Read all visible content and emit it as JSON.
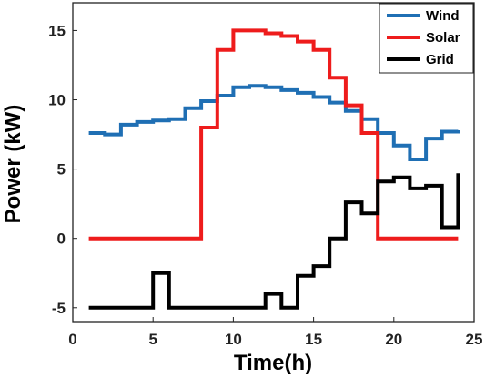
{
  "chart_data": {
    "type": "line",
    "step": true,
    "xlabel": "Time(h)",
    "ylabel": "Power (kW)",
    "xlim": [
      0,
      25
    ],
    "ylim": [
      -6,
      17
    ],
    "xticks": [
      0,
      5,
      10,
      15,
      20,
      25
    ],
    "yticks": [
      -5,
      0,
      5,
      10,
      15
    ],
    "grid": false,
    "legend": "top-right",
    "x": [
      1,
      2,
      3,
      4,
      5,
      6,
      7,
      8,
      9,
      10,
      11,
      12,
      13,
      14,
      15,
      16,
      17,
      18,
      19,
      20,
      21,
      22,
      23,
      24
    ],
    "series": [
      {
        "name": "Wind",
        "color": "#1f6fb4",
        "values": [
          7.6,
          7.5,
          8.2,
          8.4,
          8.5,
          8.6,
          9.4,
          9.9,
          10.3,
          10.9,
          11.0,
          10.9,
          10.7,
          10.5,
          10.2,
          9.8,
          9.2,
          8.6,
          7.6,
          6.7,
          5.7,
          7.2,
          7.7,
          7.8
        ]
      },
      {
        "name": "Solar",
        "color": "#ee1c1c",
        "values": [
          0,
          0,
          0,
          0,
          0,
          0,
          0,
          8.0,
          13.6,
          15.0,
          15.0,
          14.8,
          14.6,
          14.2,
          13.6,
          11.6,
          9.6,
          7.6,
          0,
          0,
          0,
          0,
          0,
          0
        ]
      },
      {
        "name": "Grid",
        "color": "#000000",
        "values": [
          -5.0,
          -5.0,
          -5.0,
          -5.0,
          -2.5,
          -5.0,
          -5.0,
          -5.0,
          -5.0,
          -5.0,
          -5.0,
          -4.0,
          -5.0,
          -2.7,
          -2.0,
          0.0,
          2.6,
          1.8,
          4.1,
          4.4,
          3.6,
          3.8,
          0.8,
          4.7
        ]
      }
    ]
  }
}
